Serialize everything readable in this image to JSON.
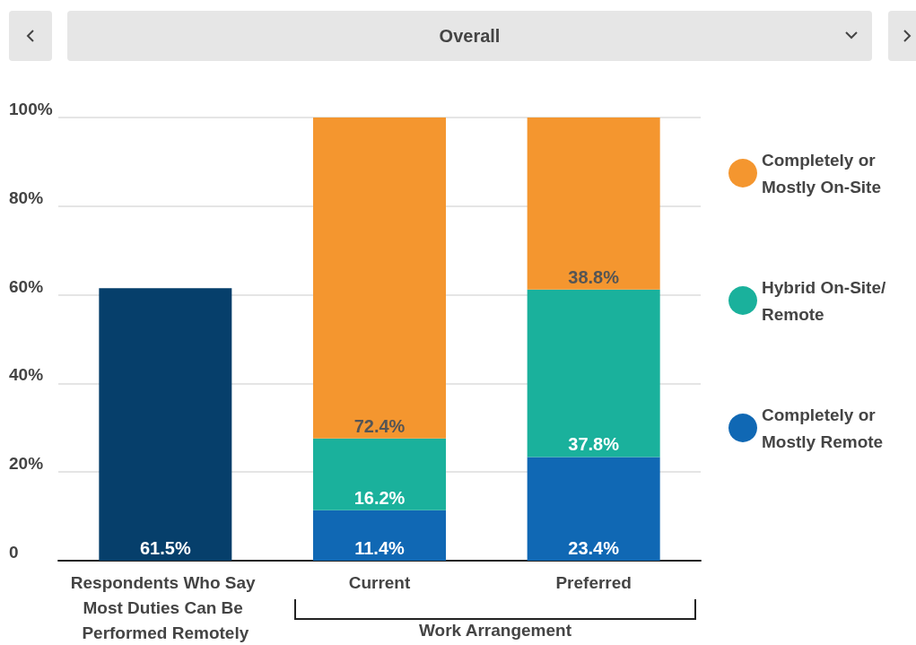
{
  "chart_data": {
    "type": "bar",
    "title": "Overall",
    "stacked": true,
    "categories": [
      "Respondents Who Say Most Duties Can Be Performed Remotely",
      "Current",
      "Preferred"
    ],
    "series": [
      {
        "color": "#063f6b",
        "values": [
          61.5,
          null,
          null
        ],
        "value_labels": [
          "61.5%",
          null,
          null
        ]
      },
      {
        "name": "Completely or Mostly Remote",
        "color": "#1068b4",
        "values": [
          null,
          11.4,
          23.4
        ],
        "value_labels": [
          null,
          "11.4%",
          "23.4%"
        ]
      },
      {
        "name": "Hybrid On-Site/ Remote",
        "color": "#1ab19c",
        "values": [
          null,
          16.2,
          37.8
        ],
        "value_labels": [
          null,
          "16.2%",
          "37.8%"
        ]
      },
      {
        "name": "Completely or Mostly On-Site",
        "color": "#f4962f",
        "values": [
          null,
          72.4,
          38.8
        ],
        "value_labels": [
          null,
          "72.4%",
          "38.8%"
        ]
      }
    ],
    "ylim": [
      0,
      100
    ],
    "yticks": [
      {
        "value": 0,
        "label": "0"
      },
      {
        "value": 20,
        "label": "20%"
      },
      {
        "value": 40,
        "label": "40%"
      },
      {
        "value": 60,
        "label": "60%"
      },
      {
        "value": 80,
        "label": "80%"
      },
      {
        "value": 100,
        "label": "100%"
      }
    ],
    "grid": "y",
    "legend": "right",
    "marker": "circle",
    "annotations": [
      "Work Arrangement"
    ]
  }
}
